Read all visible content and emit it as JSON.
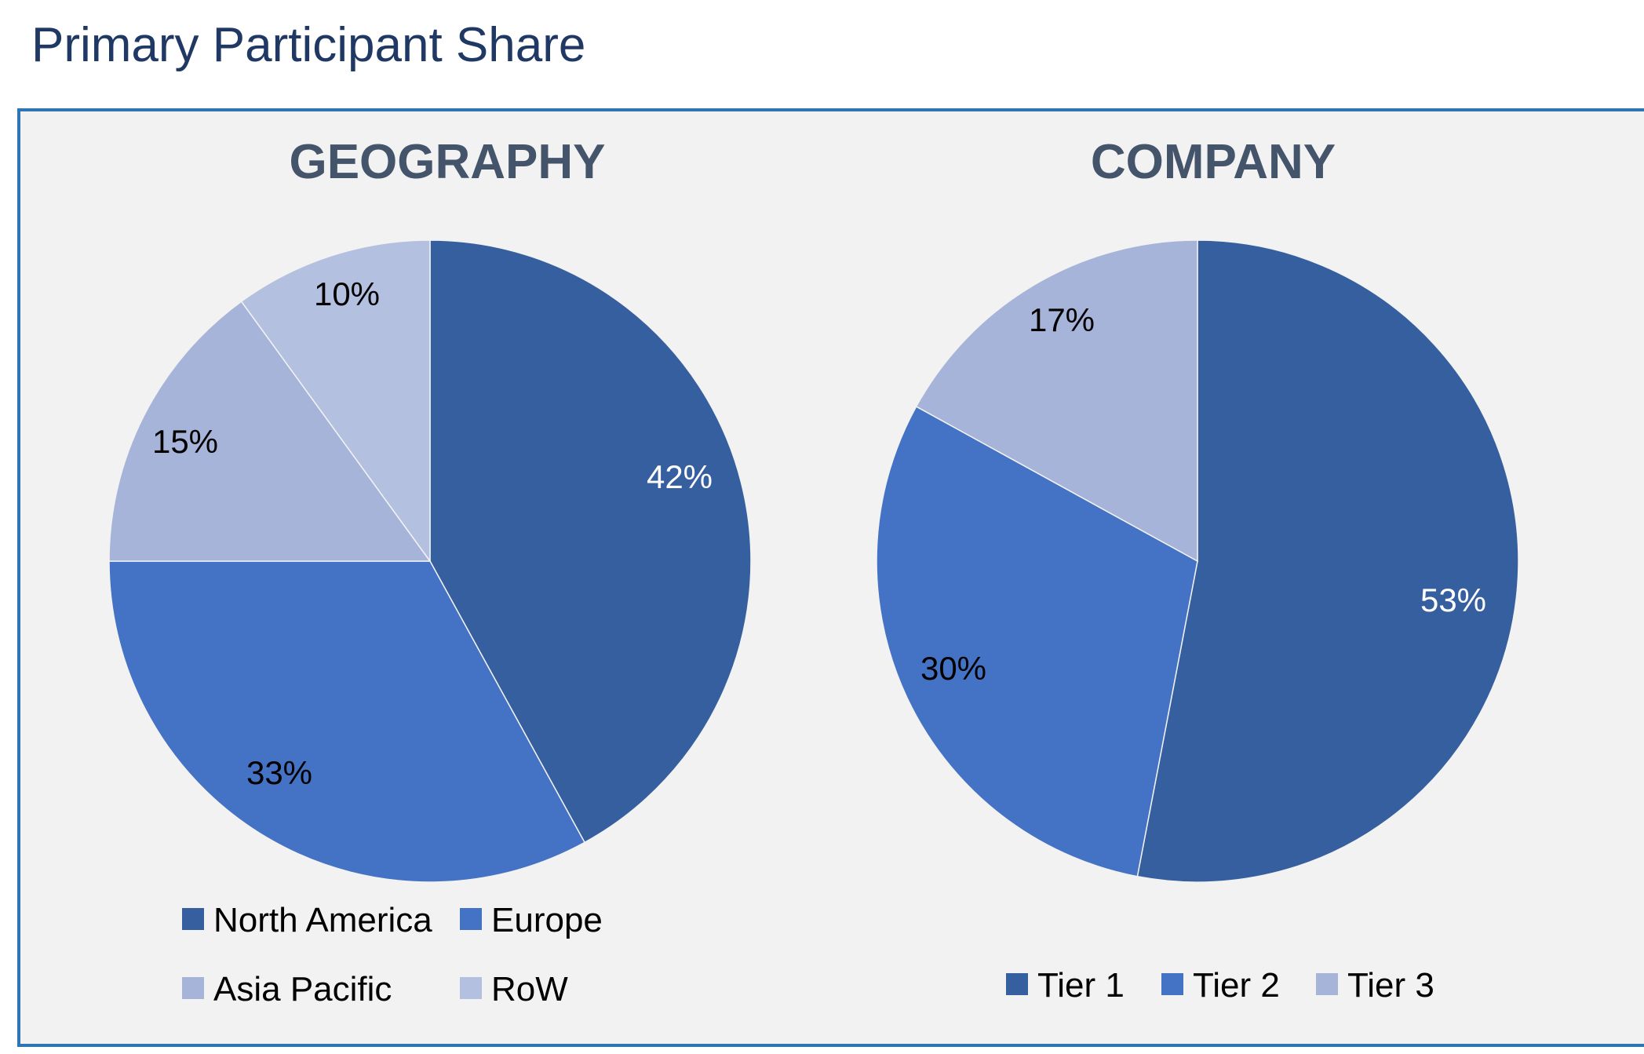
{
  "page": {
    "title": "Primary Participant Share"
  },
  "chart_data": [
    {
      "type": "pie",
      "title": "GEOGRAPHY",
      "categories": [
        "North America",
        "Europe",
        "Asia Pacific",
        "RoW"
      ],
      "values": [
        42,
        33,
        15,
        10
      ],
      "labels": [
        "42%",
        "33%",
        "15%",
        "10%"
      ],
      "colors": [
        "#365f9f",
        "#4472c4",
        "#a7b4da",
        "#b4c0e0"
      ],
      "label_colors": [
        "#ffffff",
        "#000000",
        "#000000",
        "#000000"
      ],
      "legend": [
        "North America",
        "Europe",
        "Asia Pacific",
        "RoW"
      ],
      "legend_placement": "bottom"
    },
    {
      "type": "pie",
      "title": "COMPANY",
      "categories": [
        "Tier 1",
        "Tier 2",
        "Tier 3"
      ],
      "values": [
        53,
        30,
        17
      ],
      "labels": [
        "53%",
        "30%",
        "17%"
      ],
      "colors": [
        "#365f9f",
        "#4472c4",
        "#a7b4da"
      ],
      "label_colors": [
        "#ffffff",
        "#000000",
        "#000000"
      ],
      "legend": [
        "Tier 1",
        "Tier 2",
        "Tier 3"
      ],
      "legend_placement": "bottom"
    }
  ]
}
